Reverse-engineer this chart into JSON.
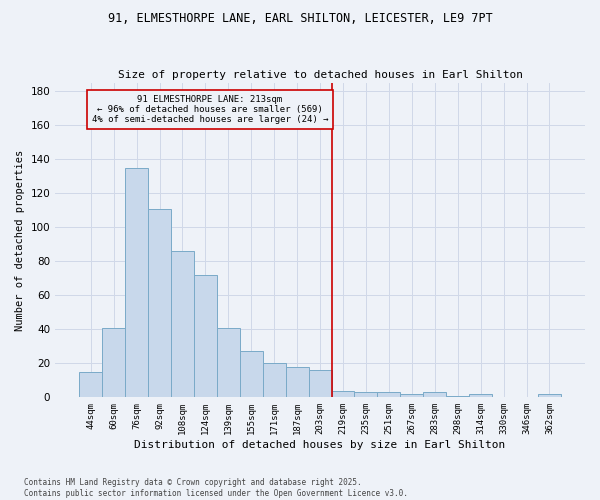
{
  "title_line1": "91, ELMESTHORPE LANE, EARL SHILTON, LEICESTER, LE9 7PT",
  "title_line2": "Size of property relative to detached houses in Earl Shilton",
  "xlabel": "Distribution of detached houses by size in Earl Shilton",
  "ylabel": "Number of detached properties",
  "footer": "Contains HM Land Registry data © Crown copyright and database right 2025.\nContains public sector information licensed under the Open Government Licence v3.0.",
  "categories": [
    "44sqm",
    "60sqm",
    "76sqm",
    "92sqm",
    "108sqm",
    "124sqm",
    "139sqm",
    "155sqm",
    "171sqm",
    "187sqm",
    "203sqm",
    "219sqm",
    "235sqm",
    "251sqm",
    "267sqm",
    "283sqm",
    "298sqm",
    "314sqm",
    "330sqm",
    "346sqm",
    "362sqm"
  ],
  "values": [
    15,
    41,
    135,
    111,
    86,
    72,
    41,
    27,
    20,
    18,
    16,
    4,
    3,
    3,
    2,
    3,
    1,
    2,
    0,
    0,
    2
  ],
  "bar_color": "#c8d8eb",
  "bar_edge_color": "#7aaac8",
  "vertical_line_x": 10.5,
  "vertical_line_color": "#cc0000",
  "annotation_text": "91 ELMESTHORPE LANE: 213sqm\n← 96% of detached houses are smaller (569)\n4% of semi-detached houses are larger (24) →",
  "annotation_box_color": "#cc0000",
  "bg_color": "#eef2f8",
  "grid_color": "#d0d8e8",
  "ylim": [
    0,
    185
  ],
  "yticks": [
    0,
    20,
    40,
    60,
    80,
    100,
    120,
    140,
    160,
    180
  ]
}
